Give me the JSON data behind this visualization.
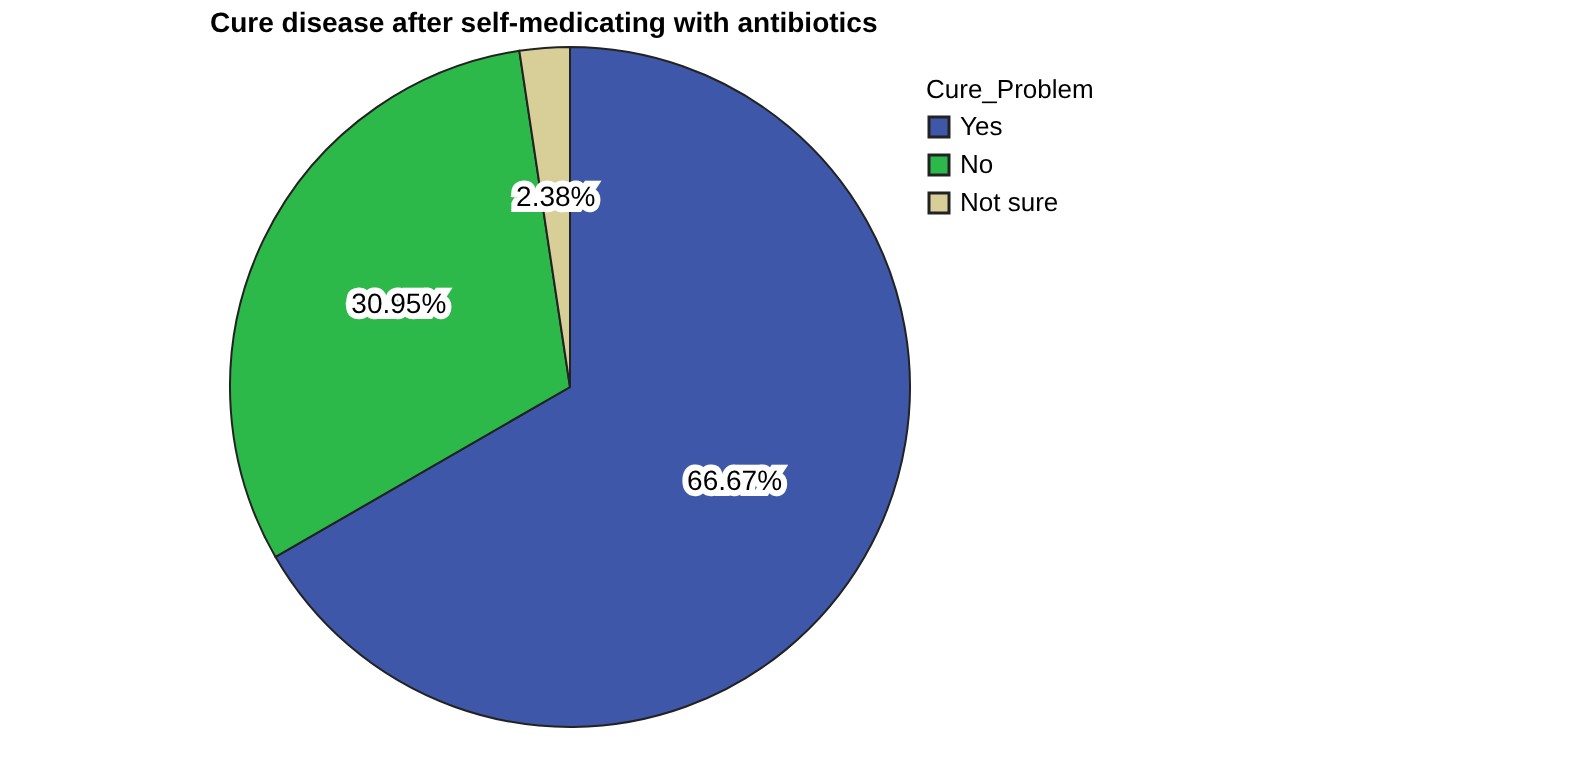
{
  "chart_data": {
    "type": "pie",
    "title": "Cure disease after self-medicating with antibiotics",
    "legend_title": "Cure_Problem",
    "categories": [
      "Yes",
      "No",
      "Not sure"
    ],
    "values": [
      66.67,
      30.95,
      2.38
    ],
    "colors": [
      "#3f57a8",
      "#2db84a",
      "#d8cf98"
    ],
    "value_labels": [
      "66.67%",
      "30.95%",
      "2.38%"
    ],
    "legend": "top right"
  }
}
